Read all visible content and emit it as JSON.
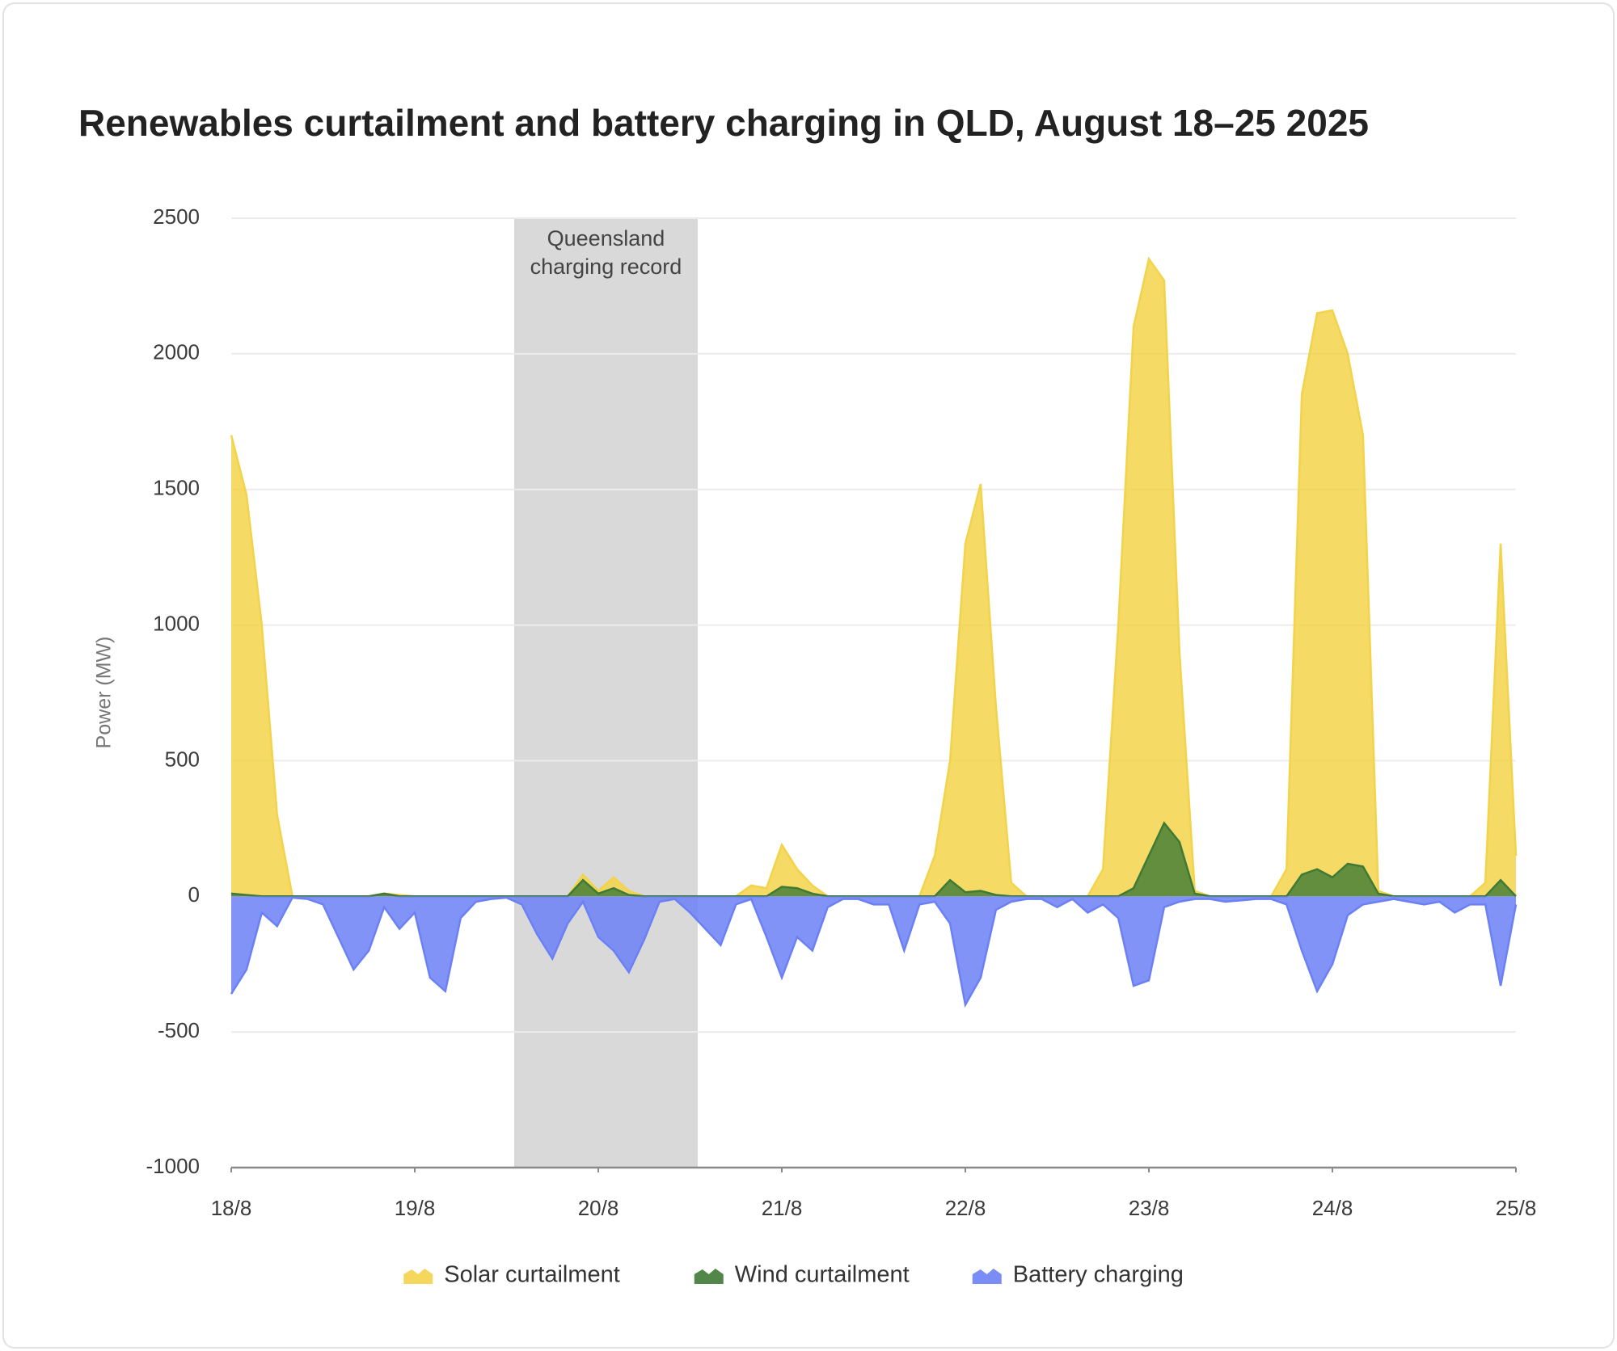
{
  "chart_data": {
    "type": "area",
    "title": "Renewables curtailment and battery charging in QLD,  August 18–25 2025",
    "y_label": "Power (MW)",
    "x": [
      0,
      2,
      4,
      6,
      8,
      10,
      12,
      14,
      16,
      18,
      20,
      22,
      24,
      26,
      28,
      30,
      32,
      34,
      36,
      38,
      40,
      42,
      44,
      46,
      48,
      50,
      52,
      54,
      56,
      58,
      60,
      62,
      64,
      66,
      68,
      70,
      72,
      74,
      76,
      78,
      80,
      82,
      84,
      86,
      88,
      90,
      92,
      94,
      96,
      98,
      100,
      102,
      104,
      106,
      108,
      110,
      112,
      114,
      116,
      118,
      120,
      122,
      124,
      126,
      128,
      130,
      132,
      134,
      136,
      138,
      140,
      142,
      144,
      146,
      148,
      150,
      152,
      154,
      156,
      158,
      160,
      162,
      164,
      166,
      168
    ],
    "xlim": [
      0,
      168
    ],
    "xticks": [
      {
        "value": 0,
        "label": "18/8"
      },
      {
        "value": 24,
        "label": "19/8"
      },
      {
        "value": 48,
        "label": "20/8"
      },
      {
        "value": 72,
        "label": "21/8"
      },
      {
        "value": 96,
        "label": "22/8"
      },
      {
        "value": 120,
        "label": "23/8"
      },
      {
        "value": 144,
        "label": "24/8"
      },
      {
        "value": 168,
        "label": "25/8"
      }
    ],
    "ylim": [
      -1000,
      2500
    ],
    "yticks": [
      -1000,
      -500,
      0,
      500,
      1000,
      1500,
      2000,
      2500
    ],
    "grid": true,
    "legend": "bottom",
    "highlight": {
      "text_lines": [
        "Queensland",
        "charging record"
      ],
      "x_range": [
        37,
        61
      ],
      "color": "#d9d9d9"
    },
    "series": [
      {
        "name": "Solar curtailment",
        "color": "#f3d34a",
        "values": [
          1700,
          1480,
          1000,
          300,
          0,
          0,
          0,
          0,
          0,
          0,
          10,
          5,
          0,
          0,
          0,
          0,
          0,
          0,
          0,
          0,
          0,
          0,
          0,
          80,
          20,
          70,
          20,
          0,
          0,
          0,
          0,
          0,
          0,
          0,
          40,
          30,
          190,
          100,
          40,
          0,
          0,
          0,
          0,
          0,
          0,
          0,
          150,
          500,
          1300,
          1520,
          700,
          50,
          0,
          0,
          0,
          0,
          0,
          100,
          1000,
          2100,
          2350,
          2270,
          900,
          20,
          0,
          0,
          0,
          0,
          0,
          100,
          1850,
          2150,
          2160,
          2000,
          1700,
          20,
          0,
          0,
          0,
          0,
          0,
          0,
          50,
          1300,
          150
        ]
      },
      {
        "name": "Wind curtailment",
        "color": "#3f7a35",
        "values": [
          10,
          5,
          0,
          0,
          0,
          0,
          0,
          0,
          0,
          0,
          10,
          0,
          0,
          0,
          0,
          0,
          0,
          0,
          0,
          0,
          0,
          0,
          0,
          60,
          10,
          30,
          5,
          0,
          0,
          0,
          0,
          0,
          0,
          0,
          0,
          0,
          35,
          30,
          10,
          0,
          0,
          0,
          0,
          0,
          0,
          0,
          0,
          60,
          15,
          20,
          5,
          0,
          0,
          0,
          0,
          0,
          0,
          0,
          0,
          30,
          150,
          270,
          200,
          10,
          0,
          0,
          0,
          0,
          0,
          0,
          80,
          100,
          70,
          120,
          110,
          10,
          0,
          0,
          0,
          0,
          0,
          0,
          0,
          60,
          0
        ]
      },
      {
        "name": "Battery charging",
        "color": "#6b80f5",
        "values": [
          -360,
          -270,
          -60,
          -110,
          -5,
          -10,
          -30,
          -150,
          -270,
          -200,
          -40,
          -120,
          -60,
          -300,
          -350,
          -80,
          -20,
          -10,
          -5,
          -30,
          -140,
          -230,
          -100,
          -20,
          -150,
          -200,
          -280,
          -160,
          -20,
          -10,
          -60,
          -120,
          -180,
          -30,
          -10,
          -150,
          -300,
          -150,
          -200,
          -40,
          -10,
          -10,
          -30,
          -30,
          -200,
          -30,
          -20,
          -100,
          -400,
          -300,
          -50,
          -20,
          -10,
          -10,
          -40,
          -10,
          -60,
          -30,
          -80,
          -330,
          -310,
          -40,
          -20,
          -10,
          -10,
          -20,
          -15,
          -10,
          -10,
          -30,
          -200,
          -350,
          -250,
          -70,
          -30,
          -20,
          -10,
          -20,
          -30,
          -20,
          -60,
          -30,
          -30,
          -330,
          -30
        ]
      }
    ]
  }
}
